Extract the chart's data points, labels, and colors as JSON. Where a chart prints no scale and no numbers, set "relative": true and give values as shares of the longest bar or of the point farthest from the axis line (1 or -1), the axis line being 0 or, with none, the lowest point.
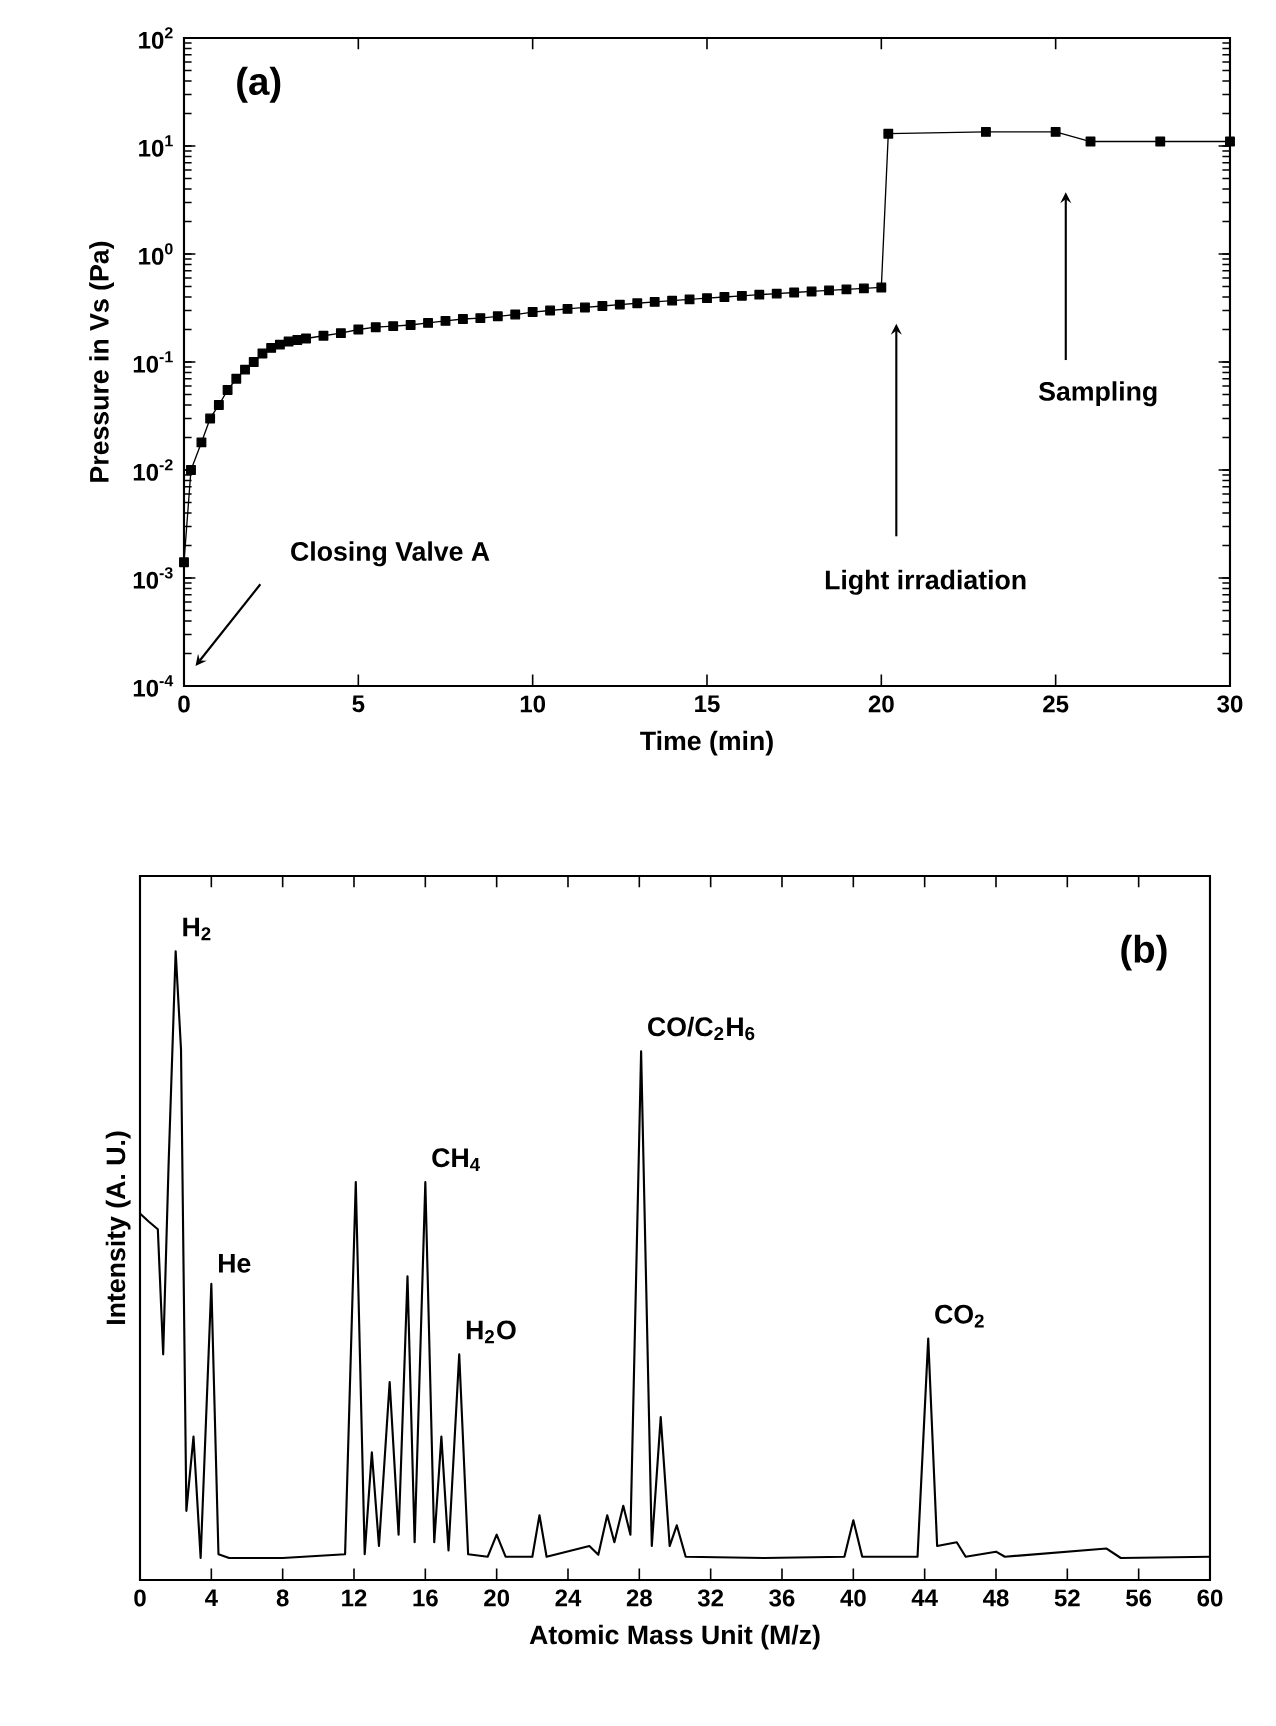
{
  "chart_data": [
    {
      "type": "line",
      "xlabel": "Time   (min)",
      "ylabel": "Pressure in Vs   (Pa)",
      "log": "y",
      "marker": "square",
      "line_style": "solid",
      "xlim": [
        0,
        30
      ],
      "xticks": [
        0,
        5,
        10,
        15,
        20,
        25,
        30
      ],
      "ylim": [
        0.0001,
        100
      ],
      "yticks": [
        {
          "value": 0.0001,
          "label": "10$^{-4}$"
        },
        {
          "value": 0.001,
          "label": "10$^{-3}$"
        },
        {
          "value": 0.01,
          "label": "10$^{-2}$"
        },
        {
          "value": 0.1,
          "label": "10$^{-1}$"
        },
        {
          "value": 1,
          "label": "10$^{0}$"
        },
        {
          "value": 10,
          "label": "10$^{1}$"
        },
        {
          "value": 100,
          "label": "10$^{2}$"
        }
      ],
      "annotations": [
        "(a)",
        "Closing Valve A",
        "Light irradiation",
        "Sampling"
      ],
      "series": [
        {
          "color": "#000000",
          "x": [
            0,
            0.2,
            0.5,
            0.75,
            1,
            1.25,
            1.5,
            1.75,
            2,
            2.25,
            2.5,
            2.75,
            3,
            3.25,
            3.5,
            4,
            4.5,
            5,
            5.5,
            6,
            6.5,
            7,
            7.5,
            8,
            8.5,
            9,
            9.5,
            10,
            10.5,
            11,
            11.5,
            12,
            12.5,
            13,
            13.5,
            14,
            14.5,
            15,
            15.5,
            16,
            16.5,
            17,
            17.5,
            18,
            18.5,
            19,
            19.5,
            20,
            20.2,
            23,
            25,
            26,
            28,
            30
          ],
          "values": [
            0.0014,
            0.01,
            0.018,
            0.03,
            0.04,
            0.055,
            0.07,
            0.085,
            0.1,
            0.12,
            0.135,
            0.145,
            0.155,
            0.16,
            0.165,
            0.175,
            0.185,
            0.2,
            0.21,
            0.215,
            0.22,
            0.23,
            0.24,
            0.25,
            0.255,
            0.265,
            0.275,
            0.29,
            0.3,
            0.31,
            0.32,
            0.33,
            0.34,
            0.35,
            0.36,
            0.37,
            0.38,
            0.39,
            0.4,
            0.41,
            0.42,
            0.43,
            0.44,
            0.45,
            0.46,
            0.47,
            0.48,
            0.49,
            13,
            13.5,
            13.5,
            11,
            11,
            11
          ]
        }
      ]
    },
    {
      "type": "line",
      "xlabel": "Atomic Mass Unit (M/z)",
      "ylabel": "Intensity  (A. U.)",
      "relative": true,
      "marker": "none",
      "line_style": "solid",
      "tick_labels": "x",
      "xlim": [
        0,
        60
      ],
      "xticks": [
        0,
        4,
        8,
        12,
        16,
        20,
        24,
        28,
        32,
        36,
        40,
        44,
        48,
        52,
        56,
        60
      ],
      "annotations": [
        "(b)",
        {
          "text": "H$_{2}$",
          "x": 2.0,
          "y": 1.0
        },
        {
          "text": "He",
          "x": 4.0,
          "y": 0.471
        },
        {
          "text": "CH$_{4}$",
          "x": 16.0,
          "y": 0.633
        },
        {
          "text": "H$_{2}$O",
          "x": 17.9,
          "y": 0.359
        },
        {
          "text": "CO/C$_{2}$H$_{6}$",
          "x": 28.1,
          "y": 0.841
        },
        {
          "text": "CO$_{2}$",
          "x": 44.2,
          "y": 0.384
        }
      ],
      "series": [
        {
          "color": "#000000",
          "x": [
            0,
            0.5,
            1.0,
            1.3,
            1.6,
            2.0,
            2.3,
            2.6,
            3.0,
            3.4,
            4.0,
            4.4,
            5,
            8,
            11.5,
            12.1,
            12.6,
            13.0,
            13.4,
            14.0,
            14.5,
            15.0,
            15.4,
            16.0,
            16.5,
            16.9,
            17.3,
            17.9,
            18.4,
            19.5,
            20,
            20.5,
            22,
            22.4,
            22.8,
            25.2,
            25.7,
            26.2,
            26.6,
            27.1,
            27.5,
            28.1,
            28.7,
            29.2,
            29.7,
            30.1,
            30.6,
            35,
            39.5,
            40,
            40.5,
            43.6,
            44.2,
            44.7,
            45.8,
            46.3,
            48,
            48.5,
            54.2,
            55,
            60
          ],
          "values": [
            0.583,
            0.57,
            0.558,
            0.359,
            0.658,
            1.0,
            0.844,
            0.11,
            0.228,
            0.035,
            0.471,
            0.041,
            0.035,
            0.035,
            0.041,
            0.633,
            0.041,
            0.203,
            0.054,
            0.315,
            0.072,
            0.483,
            0.06,
            0.633,
            0.06,
            0.228,
            0.047,
            0.359,
            0.041,
            0.037,
            0.072,
            0.037,
            0.037,
            0.103,
            0.037,
            0.054,
            0.04,
            0.103,
            0.06,
            0.118,
            0.072,
            0.841,
            0.054,
            0.259,
            0.054,
            0.087,
            0.037,
            0.035,
            0.037,
            0.095,
            0.037,
            0.037,
            0.384,
            0.054,
            0.06,
            0.037,
            0.045,
            0.037,
            0.05,
            0.035,
            0.037
          ]
        }
      ]
    }
  ]
}
